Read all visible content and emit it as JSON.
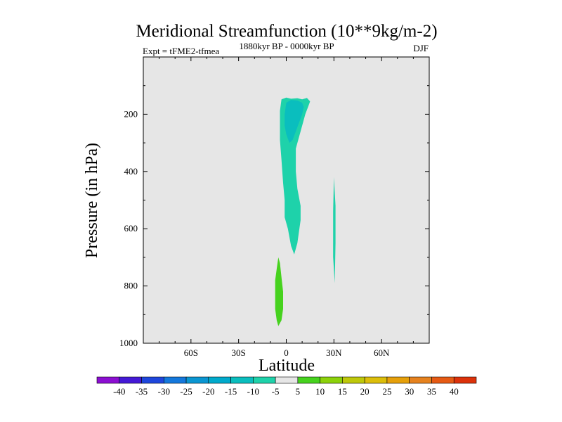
{
  "chart_data": {
    "type": "contour",
    "title": "Meridional Streamfunction (10**9kg/m-2)",
    "left_label": "Expt = tFME2-tfmea",
    "center_label": "1880kyr BP - 0000kyr BP",
    "right_label": "DJF",
    "xlabel": "Latitude",
    "ylabel": "Pressure (in hPa)",
    "xlim": [
      -90,
      90
    ],
    "ylim": [
      1000,
      0
    ],
    "x_ticks": [
      {
        "value": -60,
        "label": "60S"
      },
      {
        "value": -30,
        "label": "30S"
      },
      {
        "value": 0,
        "label": "0"
      },
      {
        "value": 30,
        "label": "30N"
      },
      {
        "value": 60,
        "label": "60N"
      }
    ],
    "y_ticks": [
      {
        "value": 200,
        "label": "200"
      },
      {
        "value": 400,
        "label": "400"
      },
      {
        "value": 600,
        "label": "600"
      },
      {
        "value": 800,
        "label": "800"
      },
      {
        "value": 1000,
        "label": "1000"
      }
    ],
    "background_color": "#e6e6e6",
    "colorbar": {
      "labels": [
        "-40",
        "-35",
        "-30",
        "-25",
        "-20",
        "-15",
        "-10",
        "-5",
        "5",
        "10",
        "15",
        "20",
        "25",
        "30",
        "35",
        "40"
      ],
      "colors": [
        "#8c0fd2",
        "#4419d6",
        "#1e46dc",
        "#1478dc",
        "#0a96d2",
        "#00aacc",
        "#0abebe",
        "#1ed2aa",
        "#e6e6e6",
        "#46d21e",
        "#8cd20a",
        "#bec80a",
        "#dcbe0a",
        "#e6a00a",
        "#e6821e",
        "#e65a14",
        "#dc320a"
      ]
    },
    "regions": [
      {
        "name": "equatorial-upper-negative-region",
        "level": "-10 to -5",
        "color": "#1ed2aa",
        "polygon": [
          [
            -4,
            188
          ],
          [
            -3,
            148
          ],
          [
            0,
            142
          ],
          [
            3,
            146
          ],
          [
            7,
            144
          ],
          [
            10,
            148
          ],
          [
            13,
            143
          ],
          [
            15,
            155
          ],
          [
            14,
            170
          ],
          [
            12,
            200
          ],
          [
            10,
            240
          ],
          [
            8,
            280
          ],
          [
            6,
            320
          ],
          [
            6,
            400
          ],
          [
            7,
            460
          ],
          [
            9,
            520
          ],
          [
            9,
            570
          ],
          [
            8,
            610
          ],
          [
            7,
            650
          ],
          [
            5,
            690
          ],
          [
            3,
            660
          ],
          [
            1,
            600
          ],
          [
            -1,
            560
          ],
          [
            -1,
            500
          ],
          [
            -2,
            440
          ],
          [
            -3,
            360
          ],
          [
            -4,
            290
          ],
          [
            -4,
            240
          ]
        ]
      },
      {
        "name": "equatorial-upper-core-region",
        "level": "-15 to -10",
        "color": "#0abebe",
        "polygon": [
          [
            -1,
            200
          ],
          [
            0,
            160
          ],
          [
            3,
            150
          ],
          [
            7,
            152
          ],
          [
            10,
            160
          ],
          [
            11,
            175
          ],
          [
            10,
            200
          ],
          [
            8,
            230
          ],
          [
            6,
            260
          ],
          [
            4,
            290
          ],
          [
            2,
            300
          ],
          [
            0,
            270
          ],
          [
            -1,
            240
          ]
        ]
      },
      {
        "name": "southern-lower-positive-region",
        "level": "5 to 10",
        "color": "#46d21e",
        "polygon": [
          [
            -7,
            780
          ],
          [
            -6,
            740
          ],
          [
            -5,
            700
          ],
          [
            -4,
            720
          ],
          [
            -3,
            770
          ],
          [
            -2,
            820
          ],
          [
            -2,
            880
          ],
          [
            -3,
            920
          ],
          [
            -5,
            940
          ],
          [
            -6,
            920
          ],
          [
            -7,
            880
          ]
        ]
      },
      {
        "name": "northern-thin-negative-region",
        "level": "-10 to -5",
        "color": "#1ed2aa",
        "polygon": [
          [
            29.5,
            540
          ],
          [
            30,
            420
          ],
          [
            31,
            520
          ],
          [
            31,
            650
          ],
          [
            30.5,
            790
          ],
          [
            29.5,
            700
          ]
        ]
      }
    ]
  }
}
